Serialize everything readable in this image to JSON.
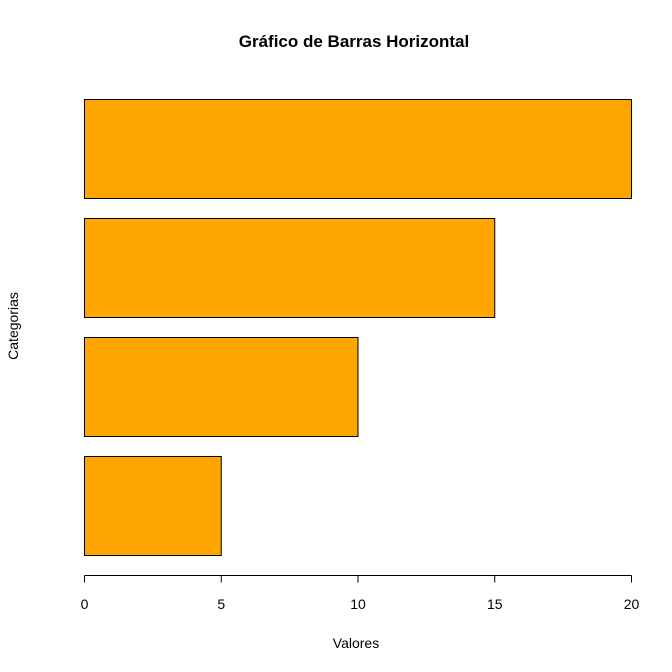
{
  "chart_data": {
    "type": "bar",
    "orientation": "horizontal",
    "title": "Gráfico de Barras Horizontal",
    "xlabel": "Valores",
    "ylabel": "Categorias",
    "values": [
      5,
      10,
      15,
      20
    ],
    "xlim": [
      0,
      20
    ],
    "x_ticks": [
      0,
      5,
      10,
      15,
      20
    ],
    "grid": false,
    "bar_color": "#FFA500",
    "bar_border_color": "#000000"
  }
}
